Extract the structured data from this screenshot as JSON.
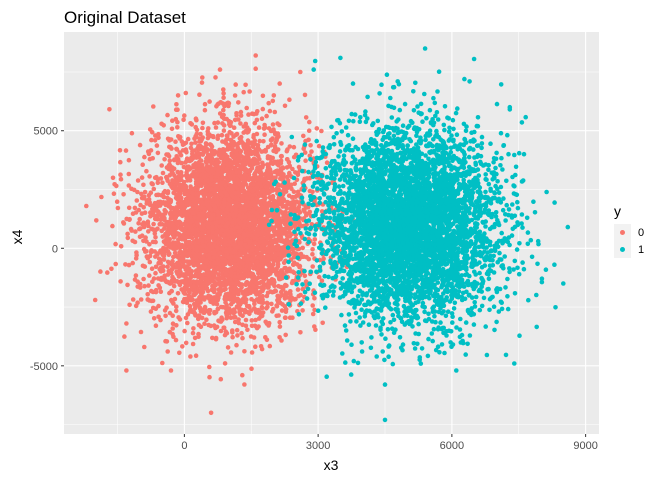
{
  "chart_data": {
    "type": "scatter",
    "title": "Original Dataset",
    "xlabel": "x3",
    "ylabel": "x4",
    "xlim": [
      -2700,
      9300
    ],
    "ylim": [
      -7900,
      9200
    ],
    "x_ticks": [
      0,
      3000,
      6000,
      9000
    ],
    "x_tick_labels": [
      "0",
      "3000",
      "6000",
      "9000"
    ],
    "y_ticks": [
      -5000,
      0,
      5000
    ],
    "y_tick_labels": [
      "-5000",
      "0",
      "5000"
    ],
    "grid": true,
    "legend": {
      "title": "y",
      "placement": "right"
    },
    "series": [
      {
        "name": "0",
        "color": "#F8766D",
        "n_points": 5000,
        "center": [
          1000,
          1000
        ],
        "spread": [
          900,
          2000
        ],
        "x_range": [
          -2200,
          3800
        ],
        "y_range": [
          -7000,
          8200
        ],
        "points": [
          [
            -2200,
            1800
          ],
          [
            -1300,
            -5200
          ],
          [
            -900,
            -4200
          ],
          [
            600,
            -7000
          ],
          [
            1300,
            -5400
          ],
          [
            1600,
            8200
          ],
          [
            800,
            7600
          ],
          [
            2600,
            7500
          ],
          [
            2800,
            5000
          ],
          [
            -1600,
            3000
          ],
          [
            -1300,
            -3200
          ],
          [
            -300,
            -5200
          ],
          [
            -2000,
            -2200
          ]
        ]
      },
      {
        "name": "1",
        "color": "#00BFC4",
        "n_points": 5000,
        "center": [
          5000,
          1000
        ],
        "spread": [
          1000,
          2000
        ],
        "x_range": [
          1800,
          8600
        ],
        "y_range": [
          -7300,
          8500
        ],
        "points": [
          [
            4500,
            -7300
          ],
          [
            4500,
            -5800
          ],
          [
            5400,
            8500
          ],
          [
            3500,
            8100
          ],
          [
            2900,
            7600
          ],
          [
            8600,
            900
          ],
          [
            8500,
            -1500
          ],
          [
            8300,
            -700
          ],
          [
            7400,
            -4900
          ],
          [
            6100,
            -5200
          ],
          [
            3800,
            -4800
          ],
          [
            7300,
            6000
          ],
          [
            1900,
            1000
          ]
        ]
      }
    ]
  }
}
